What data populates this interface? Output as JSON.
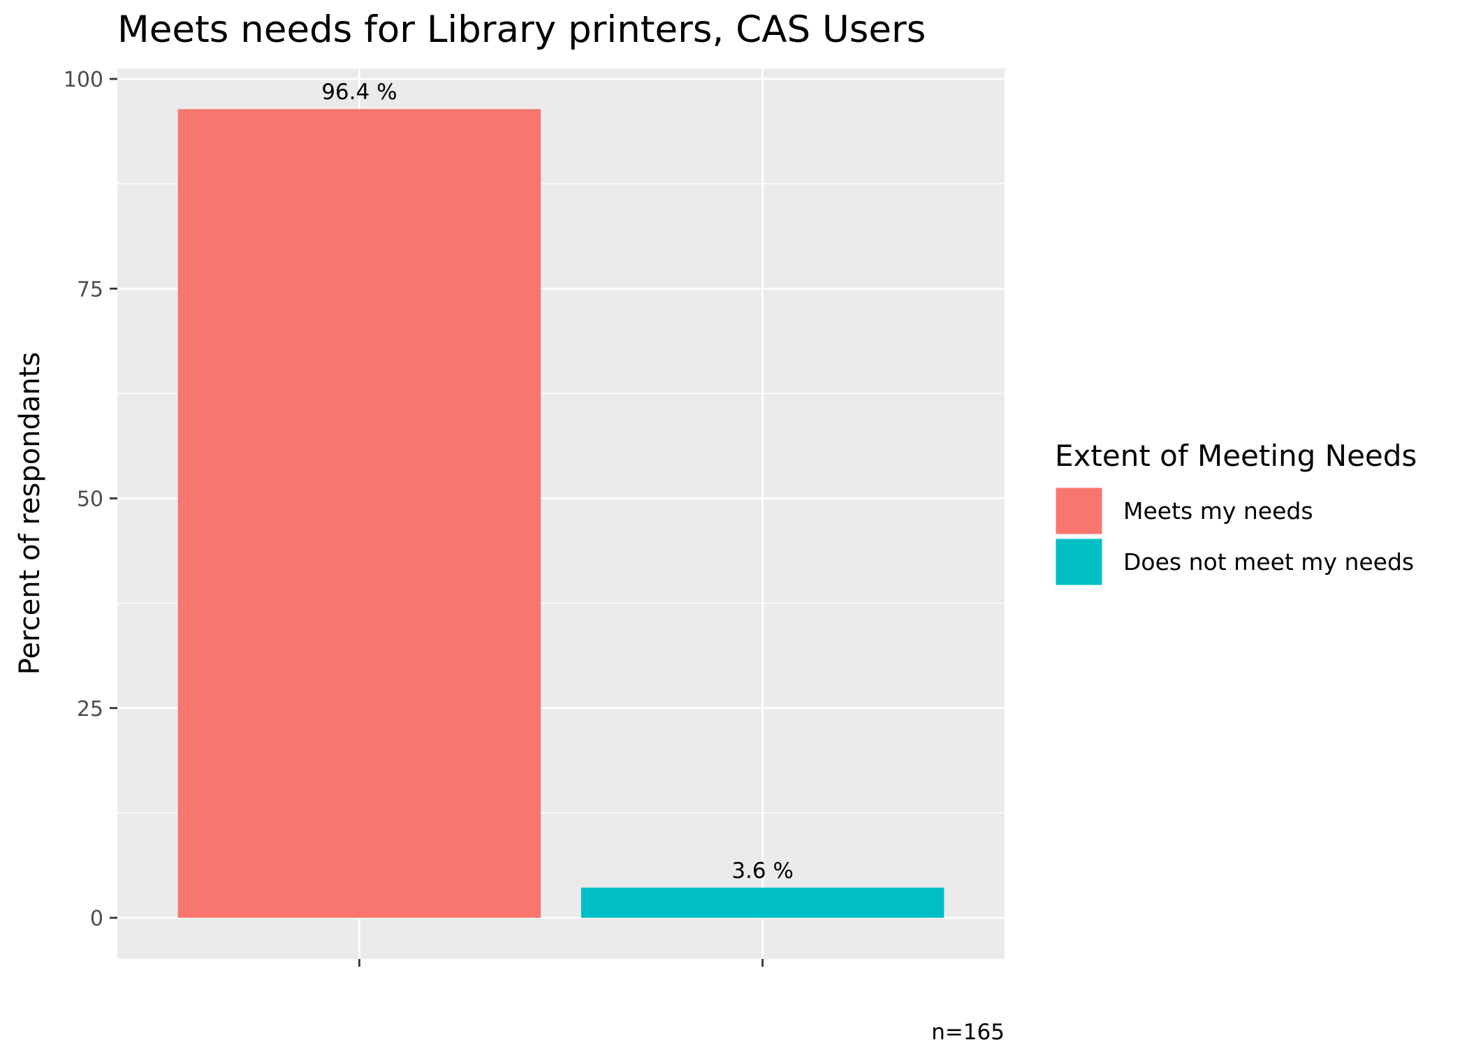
{
  "chart_data": {
    "type": "bar",
    "title": "Meets needs for Library printers, CAS Users",
    "ylabel": "Percent of respondants",
    "xlabel": "",
    "ylim": [
      0,
      100
    ],
    "yticks": [
      "0",
      "25",
      "50",
      "75",
      "100"
    ],
    "categories": [
      "Meets my needs",
      "Does not meet my needs"
    ],
    "values": [
      96.4,
      3.6
    ],
    "value_labels": [
      "96.4 %",
      "3.6 %"
    ],
    "colors": [
      "#F8766D",
      "#00BFC4"
    ],
    "legend": {
      "title": "Extent of Meeting Needs",
      "position": "right",
      "items": [
        "Meets my needs",
        "Does not meet my needs"
      ]
    },
    "caption": "n=165",
    "grid": true,
    "panel_background": "#EBEBEB"
  }
}
